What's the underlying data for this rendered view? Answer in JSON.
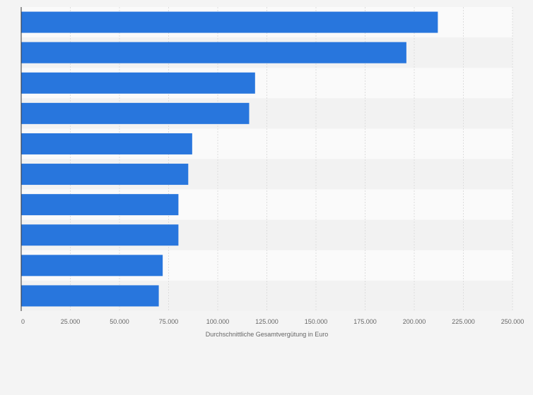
{
  "chart_data": {
    "type": "bar",
    "orientation": "horizontal",
    "title": "",
    "xlabel": "Durchschnittliche Gesamtvergütung in Euro",
    "ylabel": "",
    "categories": [
      "",
      "",
      "",
      "",
      "",
      "",
      "",
      "",
      "",
      ""
    ],
    "values": [
      212000,
      196000,
      119000,
      116000,
      87000,
      85000,
      80000,
      80000,
      72000,
      70000
    ],
    "xlim": [
      0,
      250000
    ],
    "x_ticks": [
      0,
      25000,
      50000,
      75000,
      100000,
      125000,
      150000,
      175000,
      200000,
      225000,
      250000
    ],
    "x_tick_labels": [
      "0",
      "25.000",
      "50.000",
      "75.000",
      "100.000",
      "125.000",
      "150.000",
      "175.000",
      "200.000",
      "225.000",
      "250.000"
    ],
    "grid": true,
    "legend": "none",
    "colors": {
      "bar": "#2876dd",
      "row_band_light": "#fafafa",
      "row_band_dark": "#f2f2f2",
      "grid": "#dddddd",
      "axis": "#333333",
      "text": "#666666",
      "background": "#f4f4f4"
    }
  }
}
